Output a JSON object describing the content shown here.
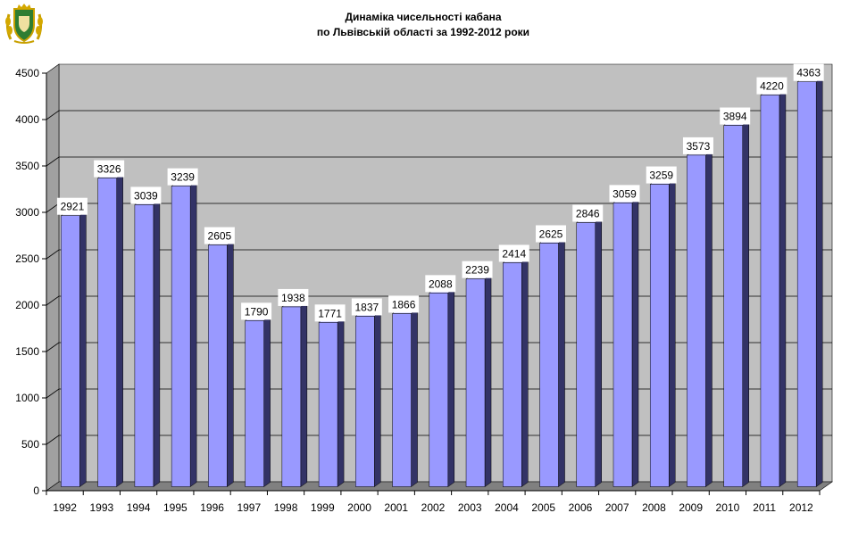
{
  "chart_data": {
    "type": "bar",
    "title_line1": "Динаміка чисельності кабана",
    "title_line2": "по Львівській області за 1992-2012 роки",
    "xlabel": "",
    "ylabel": "",
    "ylim": [
      0,
      4500
    ],
    "yticks": [
      "0",
      "500",
      "1000",
      "1500",
      "2000",
      "2500",
      "3000",
      "3500",
      "4000",
      "4500"
    ],
    "grid": true,
    "legend": "none",
    "categories": [
      "1992",
      "1993",
      "1994",
      "1995",
      "1996",
      "1997",
      "1998",
      "1999",
      "2000",
      "2001",
      "2002",
      "2003",
      "2004",
      "2005",
      "2006",
      "2007",
      "2008",
      "2009",
      "2010",
      "2011",
      "2012"
    ],
    "values": [
      2921,
      3326,
      3039,
      3239,
      2605,
      1790,
      1938,
      1771,
      1837,
      1866,
      2088,
      2239,
      2414,
      2625,
      2846,
      3059,
      3259,
      3573,
      3894,
      4220,
      4363
    ],
    "colors": {
      "bar_front": "#9999ff",
      "bar_side": "#333366",
      "bar_top": "#ccccff",
      "wall": "#c0c0c0",
      "wall_side": "#a0a0a0",
      "floor": "#808080"
    }
  },
  "logo": {
    "name": "regional-emblem"
  }
}
